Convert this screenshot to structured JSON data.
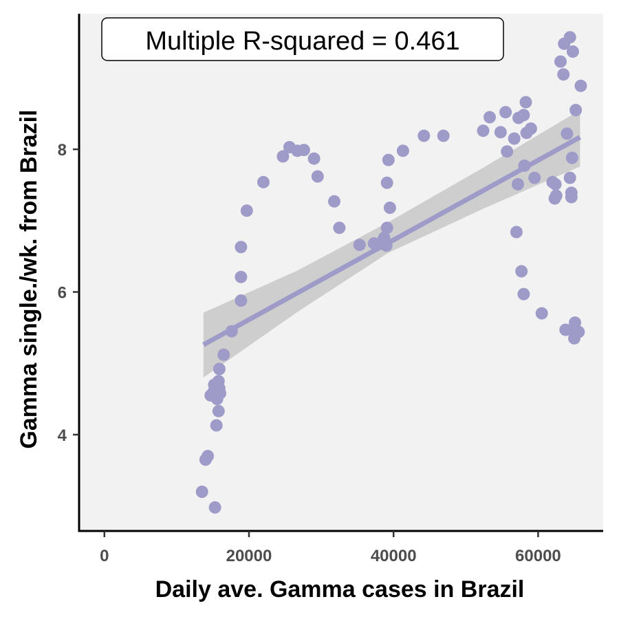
{
  "chart_data": {
    "type": "scatter",
    "title": "",
    "xlabel": "Daily ave. Gamma cases in Brazil",
    "ylabel": "Gamma single./wk. from Brazil",
    "xlim": [
      -3500,
      69000
    ],
    "ylim": [
      2.65,
      9.9
    ],
    "x_ticks": [
      0,
      20000,
      40000,
      60000
    ],
    "x_tick_labels": [
      "0",
      "20000",
      "40000",
      "60000"
    ],
    "y_ticks": [
      4,
      6,
      8
    ],
    "y_tick_labels": [
      "4",
      "6",
      "8"
    ],
    "grid": false,
    "annotation": "Multiple R-squared = 0.461",
    "colors": {
      "points": "#9f9bc9",
      "fit_line": "#9f9bc9",
      "ribbon": "#c8c8c8",
      "panel_background": "#f2f2f2",
      "axis": "#000000"
    },
    "points": [
      {
        "x": 13500,
        "y": 3.2
      },
      {
        "x": 15300,
        "y": 2.98
      },
      {
        "x": 14000,
        "y": 3.65
      },
      {
        "x": 14300,
        "y": 3.7
      },
      {
        "x": 15500,
        "y": 4.13
      },
      {
        "x": 15800,
        "y": 4.33
      },
      {
        "x": 14700,
        "y": 4.55
      },
      {
        "x": 15100,
        "y": 4.6
      },
      {
        "x": 15600,
        "y": 4.5
      },
      {
        "x": 16000,
        "y": 4.58
      },
      {
        "x": 15200,
        "y": 4.7
      },
      {
        "x": 15900,
        "y": 4.65
      },
      {
        "x": 15800,
        "y": 4.75
      },
      {
        "x": 15900,
        "y": 4.92
      },
      {
        "x": 16500,
        "y": 5.12
      },
      {
        "x": 17600,
        "y": 5.45
      },
      {
        "x": 18900,
        "y": 5.88
      },
      {
        "x": 18900,
        "y": 6.21
      },
      {
        "x": 18900,
        "y": 6.63
      },
      {
        "x": 19700,
        "y": 7.14
      },
      {
        "x": 22000,
        "y": 7.54
      },
      {
        "x": 24700,
        "y": 7.9
      },
      {
        "x": 25600,
        "y": 8.03
      },
      {
        "x": 26700,
        "y": 7.98
      },
      {
        "x": 27600,
        "y": 7.99
      },
      {
        "x": 29000,
        "y": 7.87
      },
      {
        "x": 29500,
        "y": 7.62
      },
      {
        "x": 31800,
        "y": 7.27
      },
      {
        "x": 32500,
        "y": 6.9
      },
      {
        "x": 35300,
        "y": 6.66
      },
      {
        "x": 37300,
        "y": 6.68
      },
      {
        "x": 38400,
        "y": 6.7
      },
      {
        "x": 38700,
        "y": 6.76
      },
      {
        "x": 39000,
        "y": 6.65
      },
      {
        "x": 39100,
        "y": 6.9
      },
      {
        "x": 39100,
        "y": 7.53
      },
      {
        "x": 39300,
        "y": 7.85
      },
      {
        "x": 39500,
        "y": 7.18
      },
      {
        "x": 41300,
        "y": 7.98
      },
      {
        "x": 44200,
        "y": 8.19
      },
      {
        "x": 46900,
        "y": 8.19
      },
      {
        "x": 52400,
        "y": 8.26
      },
      {
        "x": 53300,
        "y": 8.45
      },
      {
        "x": 54800,
        "y": 8.24
      },
      {
        "x": 55500,
        "y": 8.52
      },
      {
        "x": 55700,
        "y": 7.97
      },
      {
        "x": 56700,
        "y": 8.15
      },
      {
        "x": 57300,
        "y": 8.44
      },
      {
        "x": 58000,
        "y": 8.48
      },
      {
        "x": 58300,
        "y": 8.66
      },
      {
        "x": 58400,
        "y": 8.23
      },
      {
        "x": 59000,
        "y": 8.29
      },
      {
        "x": 57000,
        "y": 6.84
      },
      {
        "x": 57200,
        "y": 7.51
      },
      {
        "x": 57700,
        "y": 6.29
      },
      {
        "x": 58000,
        "y": 5.97
      },
      {
        "x": 58100,
        "y": 7.77
      },
      {
        "x": 59500,
        "y": 7.6
      },
      {
        "x": 60500,
        "y": 5.7
      },
      {
        "x": 62000,
        "y": 7.54
      },
      {
        "x": 62400,
        "y": 7.51
      },
      {
        "x": 62500,
        "y": 7.35
      },
      {
        "x": 62300,
        "y": 7.31
      },
      {
        "x": 63100,
        "y": 9.23
      },
      {
        "x": 63500,
        "y": 9.05
      },
      {
        "x": 63600,
        "y": 9.48
      },
      {
        "x": 63800,
        "y": 5.47
      },
      {
        "x": 64000,
        "y": 8.22
      },
      {
        "x": 64400,
        "y": 9.57
      },
      {
        "x": 64400,
        "y": 7.6
      },
      {
        "x": 64600,
        "y": 7.39
      },
      {
        "x": 64600,
        "y": 7.33
      },
      {
        "x": 64700,
        "y": 7.88
      },
      {
        "x": 64800,
        "y": 9.37
      },
      {
        "x": 64800,
        "y": 5.46
      },
      {
        "x": 65000,
        "y": 5.35
      },
      {
        "x": 65100,
        "y": 5.57
      },
      {
        "x": 65200,
        "y": 8.55
      },
      {
        "x": 65600,
        "y": 5.44
      },
      {
        "x": 65900,
        "y": 8.89
      }
    ],
    "fit_line": {
      "x": [
        13700,
        65800
      ],
      "y": [
        5.26,
        8.17
      ]
    },
    "confidence_band": {
      "x": [
        13700,
        26700,
        39300,
        52700,
        65800
      ],
      "upper": [
        5.71,
        6.3,
        6.98,
        7.76,
        8.55
      ],
      "lower": [
        4.8,
        5.72,
        6.55,
        7.18,
        7.76
      ]
    }
  }
}
